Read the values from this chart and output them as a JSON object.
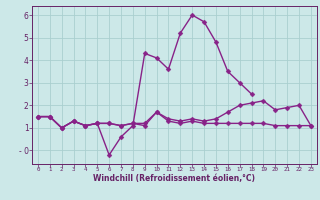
{
  "x": [
    0,
    1,
    2,
    3,
    4,
    5,
    6,
    7,
    8,
    9,
    10,
    11,
    12,
    13,
    14,
    15,
    16,
    17,
    18,
    19,
    20,
    21,
    22,
    23
  ],
  "line1": [
    1.5,
    1.5,
    1.0,
    1.3,
    1.1,
    1.2,
    1.2,
    1.1,
    1.2,
    1.1,
    1.7,
    1.3,
    1.2,
    1.3,
    1.2,
    1.2,
    1.2,
    1.2,
    1.2,
    1.2,
    1.1,
    1.1,
    1.1,
    1.1
  ],
  "line2": [
    1.5,
    1.5,
    1.0,
    1.3,
    1.1,
    1.2,
    1.2,
    1.1,
    1.2,
    1.2,
    1.7,
    1.4,
    1.3,
    1.4,
    1.3,
    1.4,
    1.7,
    2.0,
    2.1,
    2.2,
    1.8,
    1.9,
    2.0,
    1.1
  ],
  "line3": [
    1.5,
    1.5,
    1.0,
    1.3,
    1.1,
    1.2,
    -0.2,
    0.6,
    1.1,
    4.3,
    4.1,
    3.6,
    5.2,
    6.0,
    5.7,
    4.8,
    3.5,
    3.0,
    2.5,
    null,
    null,
    null,
    null,
    null
  ],
  "bg_color": "#cce8e8",
  "grid_color": "#aacfcf",
  "line_color": "#882288",
  "markersize": 2.5,
  "linewidth": 1.0,
  "xlabel": "Windchill (Refroidissement éolien,°C)",
  "tick_color": "#662266",
  "ylim": [
    -0.6,
    6.4
  ],
  "xlim": [
    -0.5,
    23.5
  ],
  "yticks": [
    0,
    1,
    2,
    3,
    4,
    5,
    6
  ],
  "ytick_labels": [
    "- 0",
    "1",
    "2",
    "3",
    "4",
    "5",
    "6"
  ],
  "xticks": [
    0,
    1,
    2,
    3,
    4,
    5,
    6,
    7,
    8,
    9,
    10,
    11,
    12,
    13,
    14,
    15,
    16,
    17,
    18,
    19,
    20,
    21,
    22,
    23
  ]
}
